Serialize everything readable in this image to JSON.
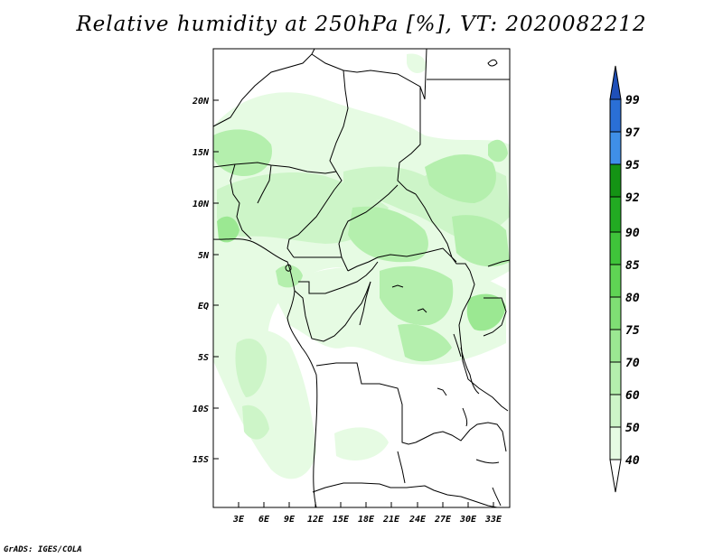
{
  "title": "Relative humidity at 250hPa [%], VT: 2020082212",
  "credit": "GrADS: IGES/COLA",
  "map": {
    "lat_ticks": [
      "20N",
      "15N",
      "10N",
      "5N",
      "EQ",
      "5S",
      "10S",
      "15S"
    ],
    "lon_ticks": [
      "3E",
      "6E",
      "9E",
      "12E",
      "15E",
      "18E",
      "21E",
      "24E",
      "27E",
      "30E",
      "33E"
    ]
  },
  "colorbar": {
    "levels": [
      "40",
      "50",
      "60",
      "70",
      "75",
      "80",
      "85",
      "90",
      "92",
      "95",
      "97",
      "99"
    ],
    "colors": [
      "#e6fbe3",
      "#cdf5c8",
      "#b4efad",
      "#9be892",
      "#7fdf74",
      "#5fd454",
      "#3fc43a",
      "#22ab22",
      "#149314",
      "#3f8fe8",
      "#2a6fd6",
      "#1f4fb8"
    ]
  }
}
